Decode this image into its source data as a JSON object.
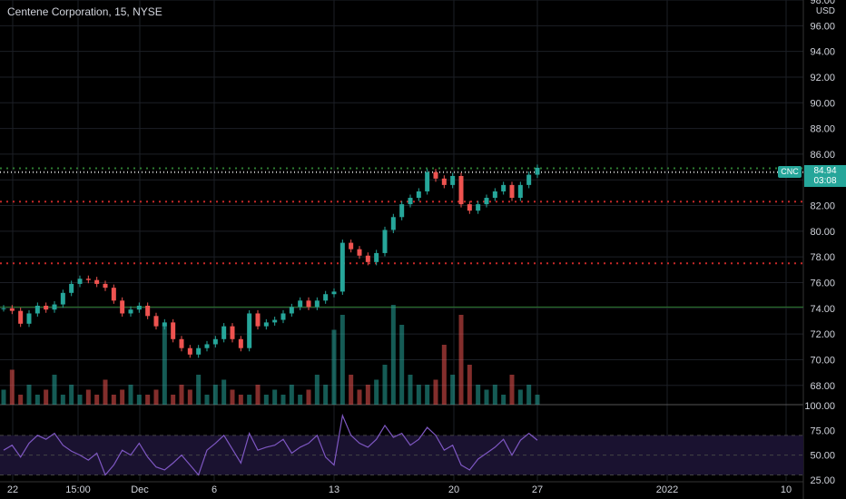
{
  "header": {
    "title": "Centene Corporation, 15, NYSE",
    "currency": "USD"
  },
  "badges": {
    "symbol": "CNC",
    "price": "84.94",
    "countdown": "03:08"
  },
  "colors": {
    "background": "#000000",
    "grid": "#1c1f26",
    "up": "#26a69a",
    "down": "#ef5350",
    "rsi_line": "#7e57c2",
    "hline_green": "#2e7d32",
    "hline_red_dotted": "#c62828",
    "hline_green_dotted": "#2e7d32",
    "axis_text": "#d1d4dc"
  },
  "chart_data": [
    {
      "type": "candlestick",
      "title": "Centene Corporation, 15, NYSE",
      "ylim": [
        66.5,
        98
      ],
      "yticks": [
        68,
        70,
        72,
        74,
        76,
        78,
        80,
        82,
        84,
        86,
        88,
        90,
        92,
        94,
        96,
        98
      ],
      "ytick_labels": [
        "68.00",
        "70.00",
        "72.00",
        "74.00",
        "76.00",
        "78.00",
        "80.00",
        "82.00",
        "",
        "86.00",
        "88.00",
        "90.00",
        "92.00",
        "94.00",
        "96.00",
        "98.00"
      ],
      "xticks": [
        "22",
        "15:00",
        "Dec",
        "6",
        "13",
        "20",
        "27",
        "2022",
        "10"
      ],
      "last_price": 84.94,
      "horizontal_levels": [
        {
          "value": 74.1,
          "style": "solid",
          "color": "green"
        },
        {
          "value": 77.5,
          "style": "dotted",
          "color": "red"
        },
        {
          "value": 82.3,
          "style": "dotted",
          "color": "red"
        },
        {
          "value": 84.9,
          "style": "dotted",
          "color": "green"
        },
        {
          "value": 84.6,
          "style": "dotted",
          "color": "white"
        }
      ],
      "close_path": [
        74.0,
        73.8,
        72.8,
        73.6,
        74.2,
        73.9,
        74.3,
        75.2,
        75.9,
        76.3,
        76.2,
        75.9,
        75.6,
        74.6,
        73.6,
        73.9,
        74.2,
        73.4,
        72.6,
        72.9,
        71.6,
        70.9,
        70.4,
        70.9,
        71.2,
        71.6,
        72.6,
        71.6,
        70.9,
        73.6,
        72.6,
        72.9,
        73.1,
        73.6,
        74.1,
        74.6,
        74.1,
        74.6,
        75.1,
        75.3,
        79.1,
        78.6,
        78.1,
        77.6,
        78.3,
        80.1,
        81.1,
        82.1,
        82.6,
        83.1,
        84.6,
        84.1,
        83.6,
        84.3,
        82.1,
        81.6,
        82.1,
        82.6,
        83.1,
        83.6,
        82.6,
        83.6,
        84.4,
        84.94
      ],
      "volume": [
        0.15,
        0.35,
        0.1,
        0.2,
        0.1,
        0.15,
        0.3,
        0.1,
        0.2,
        0.1,
        0.15,
        0.1,
        0.25,
        0.1,
        0.15,
        0.2,
        0.1,
        0.1,
        0.15,
        0.8,
        0.1,
        0.2,
        0.15,
        0.3,
        0.1,
        0.2,
        0.25,
        0.15,
        0.1,
        0.1,
        0.2,
        0.1,
        0.15,
        0.1,
        0.2,
        0.1,
        0.15,
        0.3,
        0.2,
        0.75,
        0.9,
        0.3,
        0.15,
        0.2,
        0.25,
        0.4,
        1.0,
        0.8,
        0.3,
        0.2,
        0.2,
        0.25,
        0.6,
        0.3,
        0.9,
        0.4,
        0.2,
        0.15,
        0.2,
        0.1,
        0.3,
        0.15,
        0.2,
        0.1
      ]
    },
    {
      "type": "line",
      "title": "",
      "ylim": [
        24,
        101
      ],
      "yticks": [
        25,
        50,
        75,
        100
      ],
      "ytick_labels": [
        "25.00",
        "50.00",
        "75.00",
        "100.00"
      ],
      "band": [
        30,
        70
      ],
      "values": [
        55,
        60,
        48,
        62,
        70,
        66,
        72,
        60,
        54,
        50,
        45,
        52,
        30,
        40,
        55,
        50,
        62,
        48,
        38,
        35,
        42,
        50,
        40,
        30,
        55,
        62,
        70,
        56,
        42,
        72,
        55,
        58,
        60,
        66,
        52,
        58,
        62,
        70,
        48,
        40,
        90,
        70,
        62,
        58,
        66,
        80,
        68,
        72,
        60,
        66,
        78,
        70,
        55,
        60,
        40,
        35,
        46,
        52,
        58,
        66,
        50,
        65,
        72,
        65
      ]
    }
  ]
}
